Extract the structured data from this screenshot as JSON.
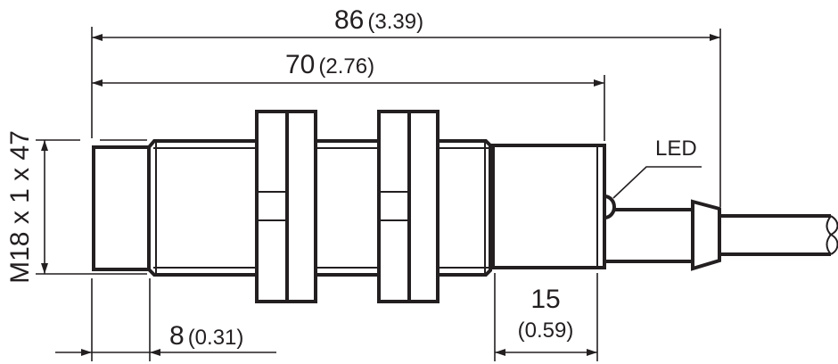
{
  "dimensions": {
    "overall_length": {
      "mm": "86",
      "inch": "(3.39)"
    },
    "housing_length": {
      "mm": "70",
      "inch": "(2.76)"
    },
    "thread": {
      "label": "M18 x 1 x 47"
    },
    "sensing_face": {
      "mm": "8",
      "inch": "(0.31)"
    },
    "rear_housing": {
      "mm": "15",
      "inch": "(0.59)"
    }
  },
  "callouts": {
    "led": "LED"
  },
  "colors": {
    "line": "#231f20",
    "background": "#ffffff"
  }
}
